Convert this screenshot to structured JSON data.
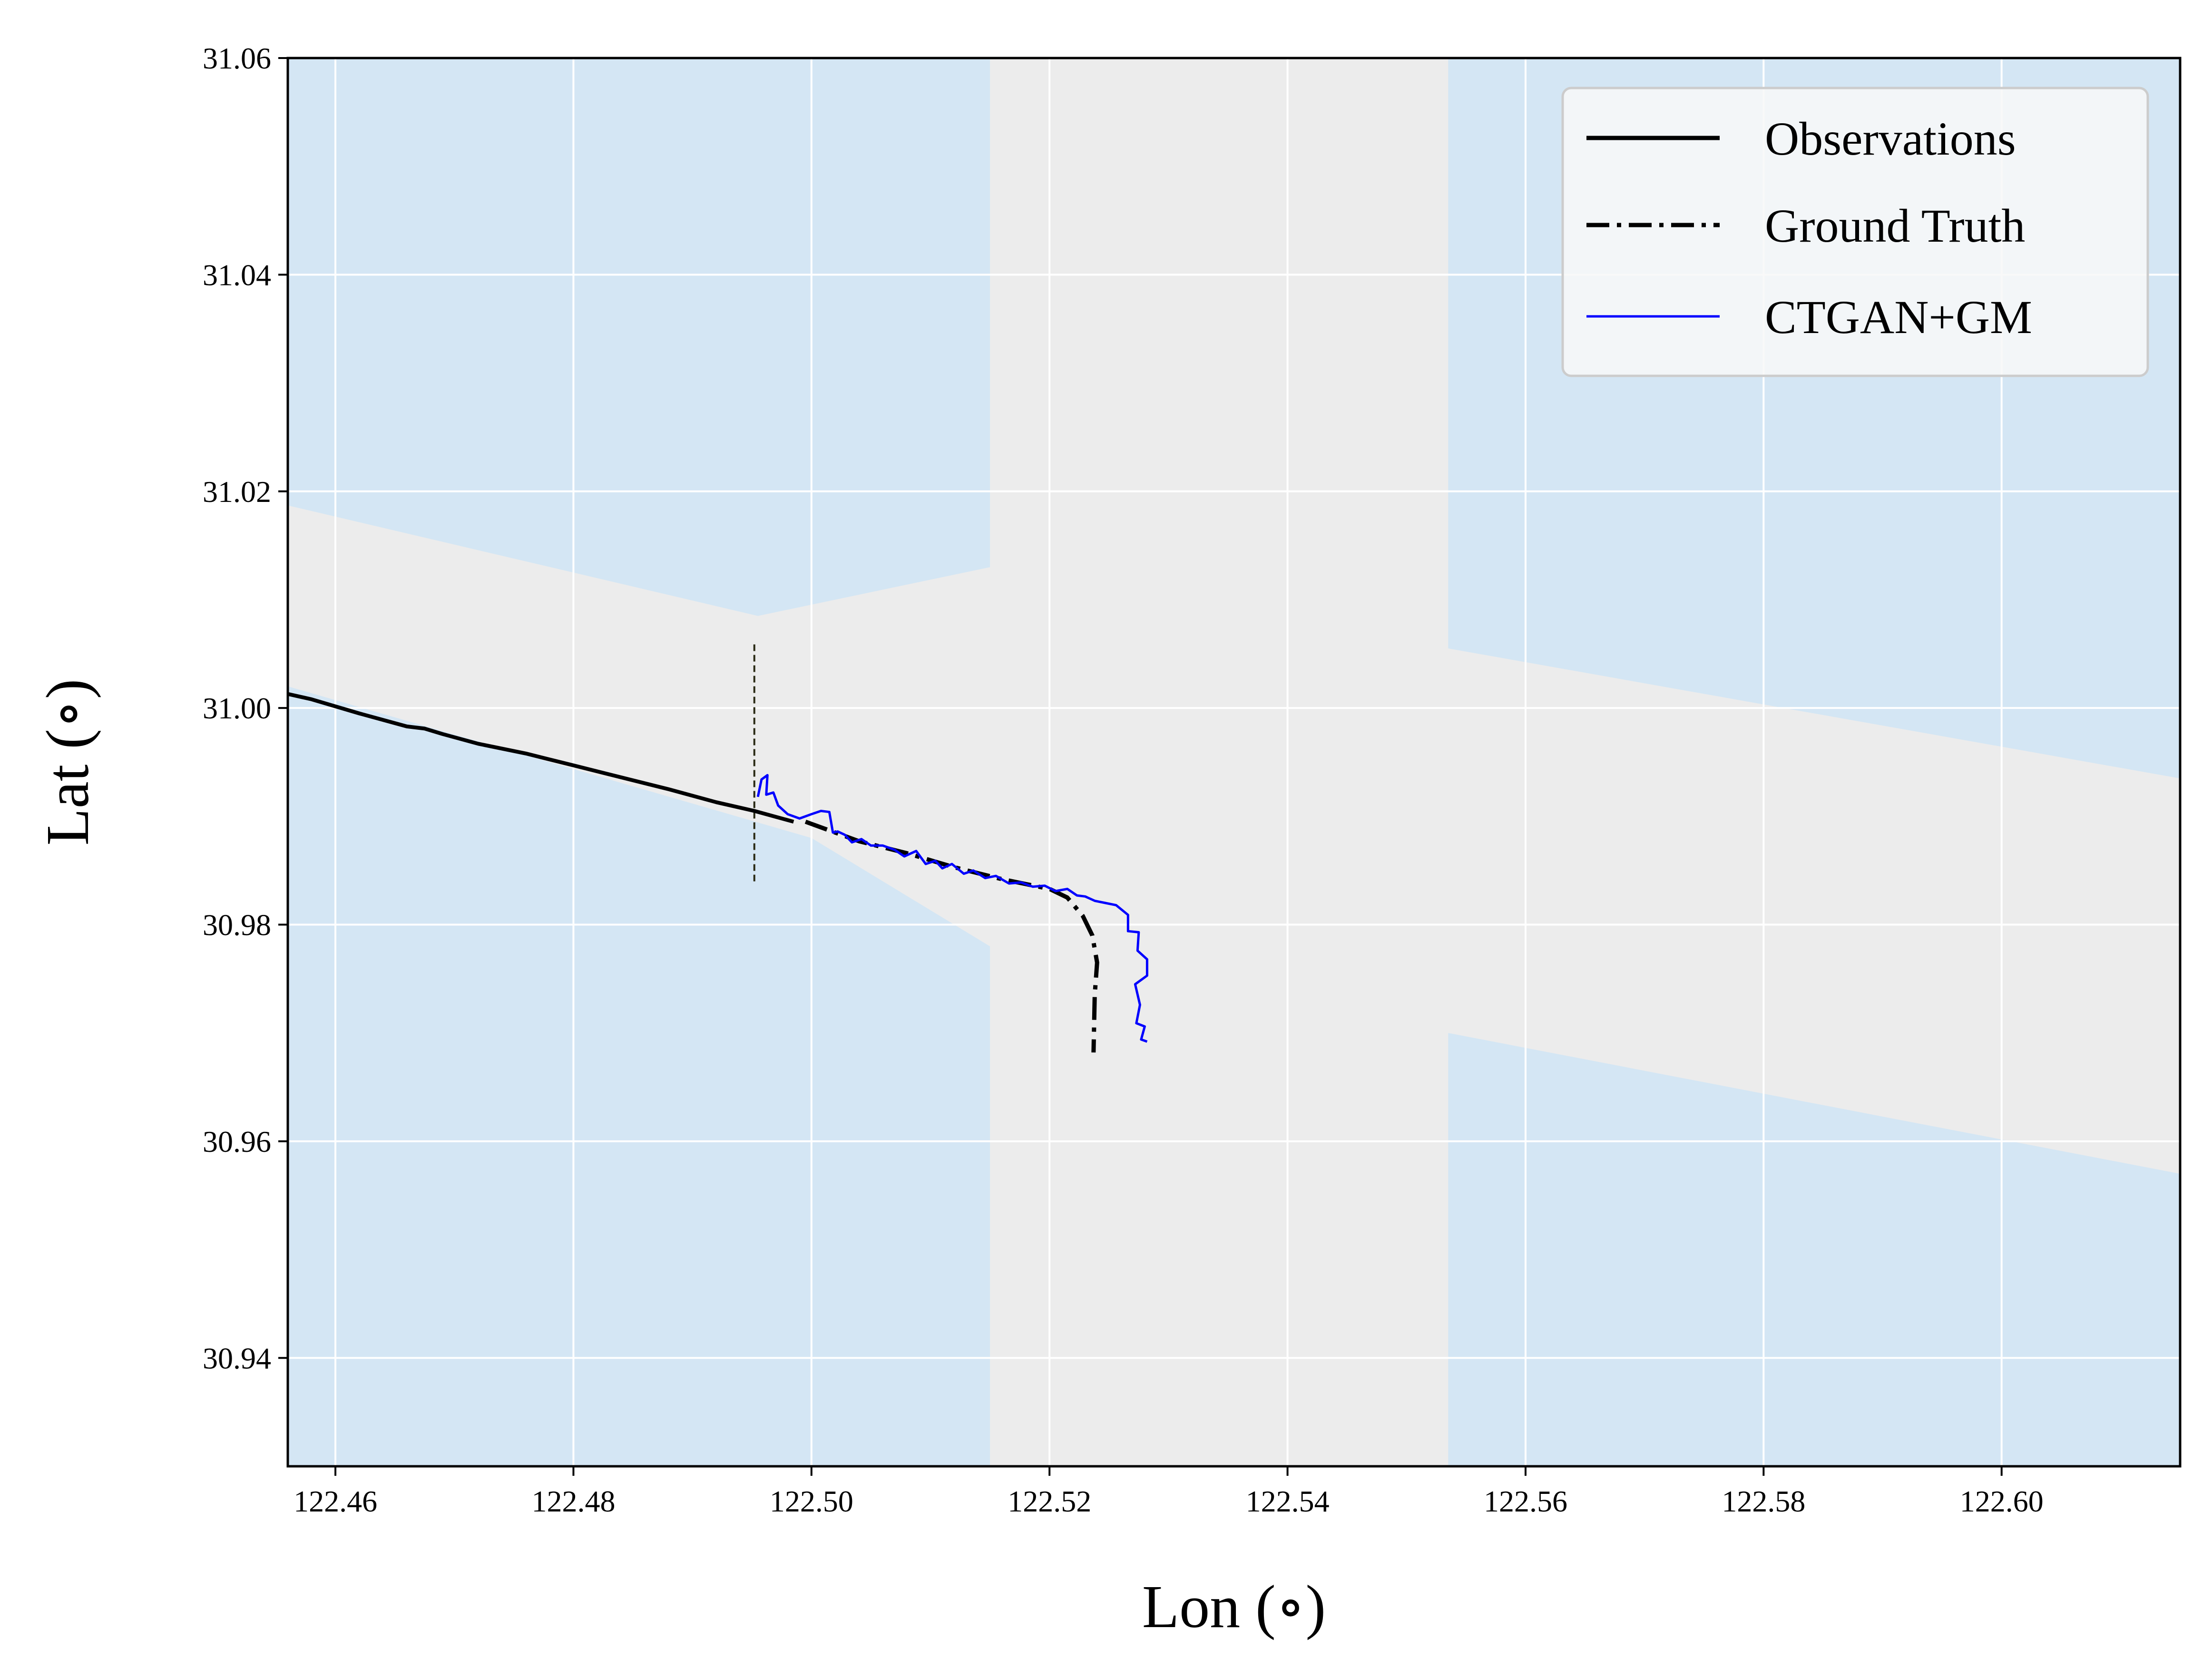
{
  "chart_data": {
    "type": "line",
    "title": "",
    "xlabel": "Lon (∘)",
    "ylabel": "Lat (∘)",
    "xlim": [
      122.456,
      122.615
    ],
    "ylim": [
      30.93,
      31.06
    ],
    "xticks": [
      "122.46",
      "122.48",
      "122.50",
      "122.52",
      "122.54",
      "122.56",
      "122.58",
      "122.60"
    ],
    "xtick_values": [
      122.46,
      122.48,
      122.5,
      122.52,
      122.54,
      122.56,
      122.58,
      122.6
    ],
    "yticks": [
      "30.94",
      "30.96",
      "30.98",
      "31.00",
      "31.02",
      "31.04",
      "31.06"
    ],
    "ytick_values": [
      30.94,
      30.96,
      30.98,
      31.0,
      31.02,
      31.04,
      31.06
    ],
    "grid": true,
    "legend_position": "top-right",
    "colors": {
      "water": "#d4e6f4",
      "channel": "#ececec",
      "grid": "#ffffff",
      "observations": "#000000",
      "ground_truth": "#000000",
      "ctgan_gm": "#0000ff",
      "marker_line": "#2a2a14"
    },
    "background_regions": [
      {
        "name": "water-top-left",
        "points": [
          [
            122.456,
            31.06
          ],
          [
            122.515,
            31.06
          ],
          [
            122.515,
            31.013
          ],
          [
            122.4955,
            31.0085
          ],
          [
            122.456,
            31.0187
          ]
        ]
      },
      {
        "name": "water-bottom-left",
        "points": [
          [
            122.456,
            30.93
          ],
          [
            122.515,
            30.93
          ],
          [
            122.515,
            30.978
          ],
          [
            122.5,
            30.988
          ],
          [
            122.456,
            31.002
          ]
        ]
      },
      {
        "name": "water-top-right",
        "points": [
          [
            122.5535,
            31.06
          ],
          [
            122.615,
            31.06
          ],
          [
            122.615,
            30.9935
          ],
          [
            122.5535,
            31.0055
          ]
        ]
      },
      {
        "name": "water-bottom-right",
        "points": [
          [
            122.5535,
            30.93
          ],
          [
            122.615,
            30.93
          ],
          [
            122.615,
            30.957
          ],
          [
            122.5535,
            30.97
          ]
        ]
      }
    ],
    "marker_line": {
      "x": 122.4952,
      "y": [
        30.984,
        31.006
      ]
    },
    "series": [
      {
        "name": "Observations",
        "style": "solid",
        "x": [
          122.456,
          122.458,
          122.462,
          122.466,
          122.4675,
          122.469,
          122.472,
          122.476,
          122.48,
          122.484,
          122.488,
          122.492,
          122.4952,
          122.4985
        ],
        "y": [
          31.0013,
          31.0008,
          30.9995,
          30.9983,
          30.9981,
          30.9976,
          30.9967,
          30.9958,
          30.9947,
          30.9936,
          30.9925,
          30.9913,
          30.9905,
          30.9895
        ]
      },
      {
        "name": "Ground Truth",
        "style": "dashdot",
        "x": [
          122.4995,
          122.504,
          122.508,
          122.512,
          122.516,
          122.52,
          122.5215,
          122.5228,
          122.5236,
          122.524,
          122.5238,
          122.5237
        ],
        "y": [
          30.9895,
          30.9877,
          30.9866,
          30.9853,
          30.9842,
          30.9833,
          30.9825,
          30.9808,
          30.979,
          30.9765,
          30.9735,
          30.9682
        ]
      },
      {
        "name": "CTGAN+GM",
        "style": "solid-thin",
        "x": [
          122.4955,
          122.4958,
          122.4963,
          122.4962,
          122.4968,
          122.4972,
          122.498,
          122.499,
          122.5,
          122.5008,
          122.5015,
          122.5018,
          122.5022,
          122.5028,
          122.5034,
          122.5042,
          122.505,
          122.506,
          122.507,
          122.5078,
          122.5088,
          122.5096,
          122.5104,
          122.511,
          122.5118,
          122.5128,
          122.5136,
          122.5146,
          122.5155,
          122.5166,
          122.5176,
          122.5186,
          122.5196,
          122.5205,
          122.5215,
          122.5223,
          122.523,
          122.5238,
          122.5247,
          122.5256,
          122.5266,
          122.5266,
          122.5275,
          122.5274,
          122.5282,
          122.5282,
          122.5272,
          122.5276,
          122.5273,
          122.528,
          122.5277,
          122.5282
        ],
        "y": [
          30.9918,
          30.9934,
          30.9938,
          30.992,
          30.9922,
          30.991,
          30.9902,
          30.9898,
          30.9902,
          30.9905,
          30.9904,
          30.9885,
          30.9886,
          30.9883,
          30.9876,
          30.9879,
          30.9873,
          30.9873,
          30.9869,
          30.9863,
          30.9868,
          30.9856,
          30.9859,
          30.9852,
          30.9856,
          30.9847,
          30.985,
          30.9843,
          30.9845,
          30.9838,
          30.9839,
          30.9835,
          30.9836,
          30.9831,
          30.9833,
          30.9827,
          30.9826,
          30.9822,
          30.982,
          30.9818,
          30.9809,
          30.9794,
          30.9793,
          30.9776,
          30.9768,
          30.9753,
          30.9745,
          30.9726,
          30.9709,
          30.9706,
          30.9694,
          30.9692
        ]
      }
    ],
    "legend": [
      {
        "label": "Observations",
        "style": "solid"
      },
      {
        "label": "Ground Truth",
        "style": "dashdot"
      },
      {
        "label": "CTGAN+GM",
        "style": "solid-thin"
      }
    ]
  }
}
